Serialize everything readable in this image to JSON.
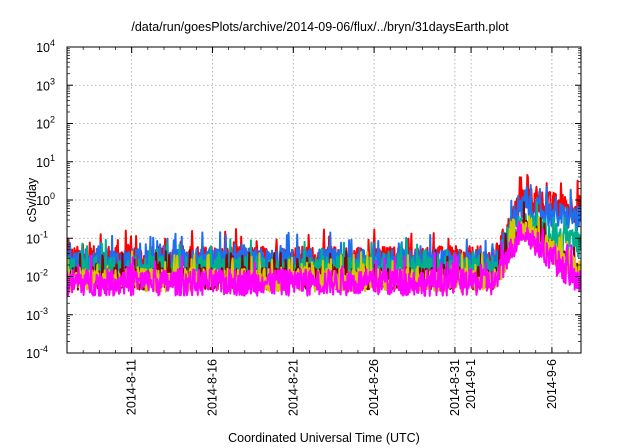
{
  "chart_data": {
    "type": "line",
    "title": "/data/run/goesPlots/archive/2014-09-06/flux/../bryn/31daysEarth.plot",
    "xlabel": "Coordinated Universal Time (UTC)",
    "ylabel": "cSv/day",
    "yscale": "log",
    "ylim": [
      0.0001,
      10000
    ],
    "y_ticks": [
      {
        "value": 0.0001,
        "base": "10",
        "exp": "-4"
      },
      {
        "value": 0.001,
        "base": "10",
        "exp": "-3"
      },
      {
        "value": 0.01,
        "base": "10",
        "exp": "-2"
      },
      {
        "value": 0.1,
        "base": "10",
        "exp": "-1"
      },
      {
        "value": 1,
        "base": "10",
        "exp": "0"
      },
      {
        "value": 10,
        "base": "10",
        "exp": "1"
      },
      {
        "value": 100,
        "base": "10",
        "exp": "2"
      },
      {
        "value": 1000,
        "base": "10",
        "exp": "3"
      },
      {
        "value": 10000,
        "base": "10",
        "exp": "4"
      }
    ],
    "xlim": [
      "2014-08-07",
      "2014-09-07.8"
    ],
    "x_ticks": [
      "2014-8-11",
      "2014-8-16",
      "2014-8-21",
      "2014-8-26",
      "2014-8-31",
      "2014-9-1",
      "2014-9-6"
    ],
    "grid": true,
    "series": [
      {
        "color": "#ff0000",
        "baseline": 0.028,
        "event_peak": 1.0,
        "event_end": 0.55,
        "spread": 0.35
      },
      {
        "color": "#1e6ef0",
        "baseline": 0.024,
        "event_peak": 0.6,
        "event_end": 0.3,
        "spread": 0.35
      },
      {
        "color": "#00b08a",
        "baseline": 0.015,
        "event_peak": 0.25,
        "event_end": 0.06,
        "spread": 0.35
      },
      {
        "color": "#8b0000",
        "baseline": 0.009,
        "event_peak": 0.2,
        "event_end": 0.01,
        "spread": 0.3
      },
      {
        "color": "#d4c800",
        "baseline": 0.008,
        "event_peak": 0.18,
        "event_end": 0.012,
        "spread": 0.3
      },
      {
        "color": "#ff00ff",
        "baseline": 0.007,
        "event_peak": 0.17,
        "event_end": 0.006,
        "spread": 0.35
      }
    ],
    "event_onset": "2014-09-02.5"
  }
}
